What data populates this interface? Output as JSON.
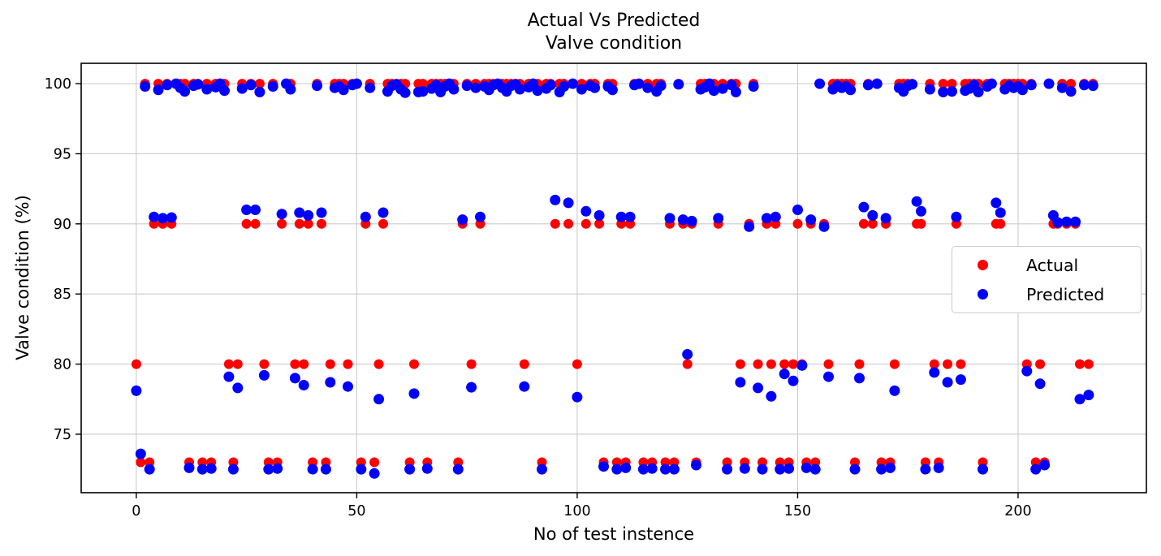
{
  "title": {
    "line1": "Actual Vs Predicted",
    "line2": "Valve condition"
  },
  "axes": {
    "xlabel": "No of test instence",
    "ylabel": "Valve condition (%)"
  },
  "legend": {
    "entries": [
      {
        "label": "Actual",
        "color": "#ff0000"
      },
      {
        "label": "Predicted",
        "color": "#0000ff"
      }
    ]
  },
  "colors": {
    "actual": "#ff0000",
    "predicted": "#0000ff",
    "grid": "#cccccc",
    "spine": "#000000",
    "tick_text": "#000000",
    "background": "#ffffff"
  },
  "chart_data": {
    "type": "scatter",
    "title": "Actual Vs Predicted\nValve condition",
    "xlabel": "No of test instence",
    "ylabel": "Valve condition (%)",
    "xlim": [
      -12.5,
      229.1
    ],
    "ylim": [
      70.83,
      101.45
    ],
    "xticks": [
      0,
      50,
      100,
      150,
      200
    ],
    "yticks": [
      75,
      80,
      85,
      90,
      95,
      100
    ],
    "grid": true,
    "legend_position": "center right",
    "x_description": "No of test instance: integers 0..217, shared by both series",
    "x": {
      "from": 0,
      "to": 217,
      "step": 1
    },
    "series": [
      {
        "name": "Actual",
        "color": "#ff0000",
        "marker_radius": 6,
        "values": [
          80,
          73,
          100,
          73,
          90,
          100,
          90,
          100,
          90,
          100,
          100,
          100,
          73,
          100,
          100,
          73,
          100,
          73,
          100,
          100,
          100,
          80,
          73,
          80,
          100,
          90,
          100,
          90,
          100,
          80,
          73,
          100,
          73,
          90,
          100,
          100,
          80,
          90,
          80,
          90,
          73,
          100,
          90,
          73,
          80,
          100,
          100,
          100,
          80,
          100,
          100,
          73,
          90,
          100,
          73,
          80,
          90,
          100,
          100,
          100,
          100,
          100,
          73,
          80,
          100,
          100,
          73,
          100,
          100,
          100,
          100,
          100,
          100,
          73,
          90,
          100,
          80,
          100,
          90,
          100,
          100,
          100,
          100,
          100,
          100,
          100,
          100,
          100,
          80,
          100,
          100,
          100,
          73,
          100,
          100,
          90,
          100,
          100,
          90,
          100,
          80,
          100,
          90,
          100,
          100,
          90,
          73,
          100,
          100,
          73,
          90,
          73,
          90,
          100,
          100,
          73,
          100,
          73,
          100,
          100,
          73,
          90,
          73,
          100,
          90,
          80,
          90,
          73,
          100,
          100,
          100,
          100,
          90,
          100,
          73,
          100,
          100,
          80,
          73,
          90,
          100,
          80,
          73,
          90,
          80,
          90,
          73,
          80,
          73,
          80,
          90,
          80,
          73,
          90,
          73,
          100,
          90,
          80,
          100,
          100,
          100,
          100,
          100,
          73,
          80,
          90,
          100,
          90,
          100,
          73,
          90,
          73,
          80,
          100,
          100,
          100,
          100,
          90,
          90,
          73,
          100,
          80,
          73,
          100,
          80,
          100,
          90,
          80,
          100,
          100,
          100,
          100,
          73,
          100,
          100,
          90,
          90,
          100,
          100,
          100,
          100,
          100,
          80,
          100,
          73,
          80,
          73,
          100,
          90,
          90,
          100,
          90,
          100,
          90,
          80,
          100,
          80,
          100
        ]
      },
      {
        "name": "Predicted",
        "color": "#0000ff",
        "marker_radius": 6.5,
        "values": [
          78.1,
          73.6,
          99.8,
          72.5,
          90.5,
          99.55,
          90.4,
          99.9,
          90.45,
          100,
          99.7,
          99.45,
          72.6,
          99.85,
          99.95,
          72.5,
          99.6,
          72.55,
          99.75,
          100,
          99.5,
          79.1,
          72.5,
          78.3,
          99.65,
          91,
          99.9,
          91,
          99.4,
          79.2,
          72.5,
          99.8,
          72.55,
          90.7,
          100,
          99.6,
          79,
          90.8,
          78.5,
          90.6,
          72.5,
          99.85,
          90.8,
          72.5,
          78.7,
          99.7,
          99.8,
          99.55,
          78.4,
          99.9,
          100,
          72.5,
          90.5,
          99.7,
          72.2,
          77.5,
          90.8,
          99.45,
          99.85,
          99.95,
          99.6,
          99.35,
          72.5,
          77.9,
          99.4,
          99.45,
          72.55,
          99.65,
          99.9,
          99.4,
          99.8,
          100,
          99.6,
          72.5,
          90.3,
          99.85,
          78.35,
          99.7,
          90.5,
          99.8,
          99.55,
          99.9,
          100,
          99.7,
          99.45,
          99.85,
          99.95,
          99.6,
          78.4,
          99.75,
          100,
          99.5,
          72.5,
          99.65,
          99.9,
          91.7,
          99.4,
          99.8,
          91.5,
          100,
          77.65,
          99.6,
          90.9,
          99.85,
          99.7,
          90.6,
          72.7,
          99.8,
          99.55,
          72.5,
          90.5,
          72.6,
          90.5,
          99.9,
          100,
          72.5,
          99.7,
          72.55,
          99.45,
          99.85,
          72.5,
          90.4,
          72.5,
          99.95,
          90.3,
          80.7,
          90.2,
          72.8,
          99.6,
          99.75,
          100,
          99.5,
          90.4,
          99.65,
          72.5,
          99.9,
          99.4,
          78.7,
          72.55,
          89.8,
          99.8,
          78.3,
          72.5,
          90.4,
          77.7,
          90.5,
          72.5,
          79.3,
          72.55,
          78.8,
          91,
          79.9,
          72.6,
          90.3,
          72.5,
          100,
          89.8,
          79.1,
          99.6,
          99.85,
          99.7,
          99.8,
          99.55,
          72.5,
          79,
          91.2,
          99.9,
          90.6,
          100,
          72.5,
          90.4,
          72.6,
          78.1,
          99.7,
          99.45,
          99.85,
          99.95,
          91.6,
          90.9,
          72.5,
          99.6,
          79.4,
          72.6,
          99.4,
          78.7,
          99.45,
          90.5,
          78.9,
          99.5,
          99.65,
          99.9,
          99.4,
          72.5,
          99.8,
          100,
          91.5,
          90.8,
          99.6,
          99.85,
          99.7,
          99.8,
          99.55,
          79.5,
          99.9,
          72.5,
          78.6,
          72.8,
          100,
          90.6,
          90.1,
          99.7,
          90.15,
          99.45,
          90.15,
          77.5,
          99.9,
          77.8,
          99.85
        ]
      }
    ]
  }
}
